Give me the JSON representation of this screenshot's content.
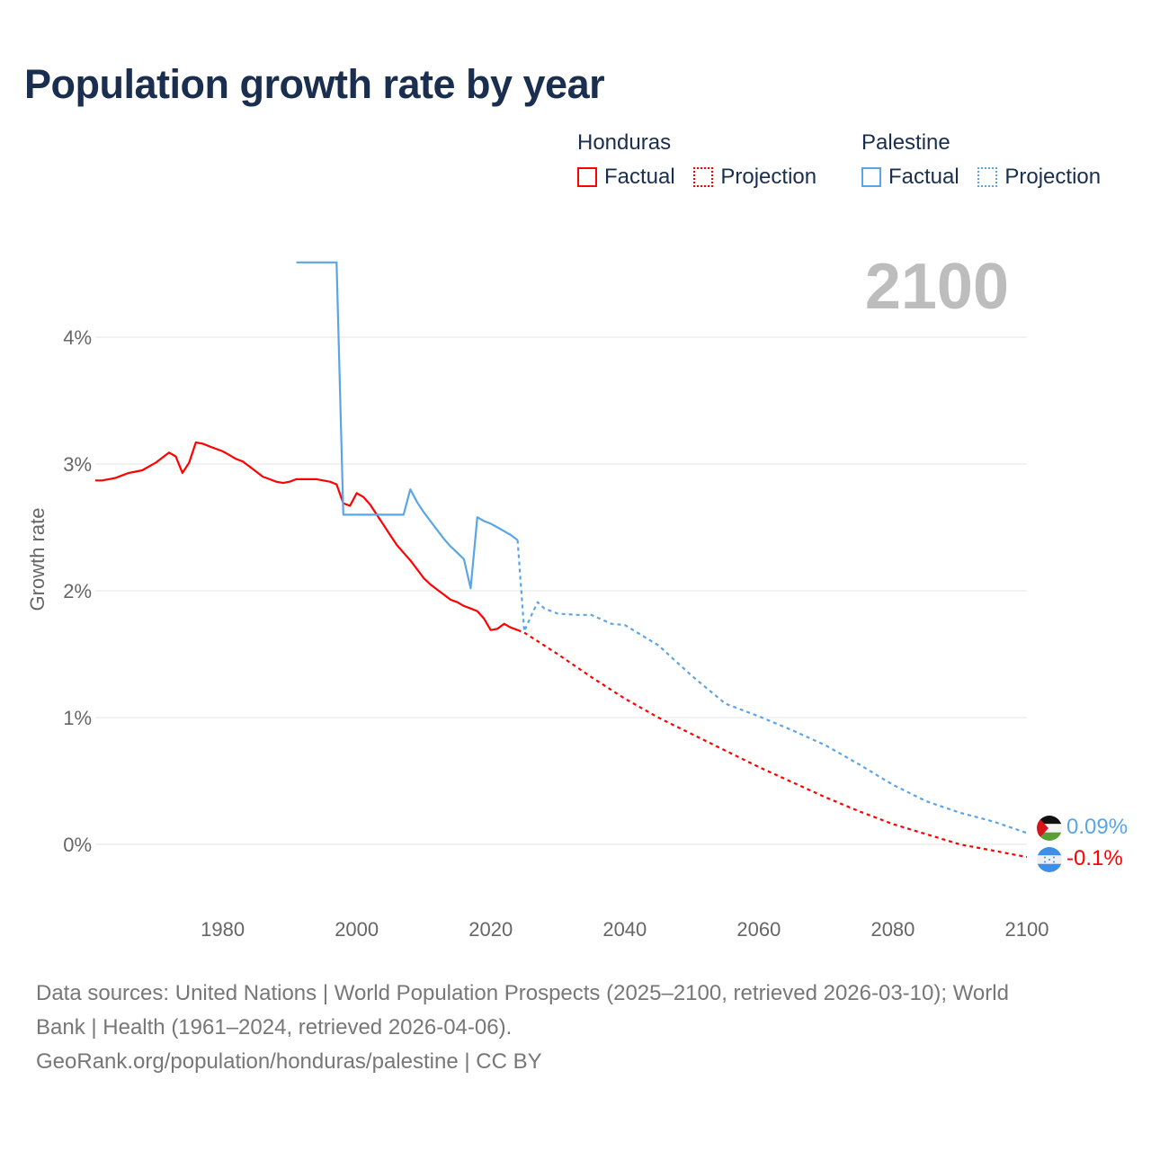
{
  "chart_data": {
    "type": "line",
    "title": "Population growth rate by year",
    "ylabel": "Growth rate",
    "xlabel": "",
    "xlim": [
      1961,
      2100
    ],
    "ylim": [
      -0.3,
      4.6
    ],
    "x_ticks": [
      "1980",
      "2000",
      "2020",
      "2040",
      "2060",
      "2080",
      "2100"
    ],
    "y_ticks": [
      "0%",
      "1%",
      "2%",
      "3%",
      "4%"
    ],
    "year_display": "2100",
    "legend": {
      "groups": [
        {
          "name": "Honduras",
          "items": [
            "Factual",
            "Projection"
          ]
        },
        {
          "name": "Palestine",
          "items": [
            "Factual",
            "Projection"
          ]
        }
      ],
      "placement": "top-right"
    },
    "series": [
      {
        "name": "Honduras Factual",
        "color": "#ff0000",
        "style": "solid",
        "x": [
          1961,
          1962,
          1963,
          1964,
          1965,
          1966,
          1967,
          1968,
          1969,
          1970,
          1971,
          1972,
          1973,
          1974,
          1975,
          1976,
          1977,
          1978,
          1979,
          1980,
          1981,
          1982,
          1983,
          1984,
          1985,
          1986,
          1987,
          1988,
          1989,
          1990,
          1991,
          1992,
          1993,
          1994,
          1995,
          1996,
          1997,
          1998,
          1999,
          2000,
          2001,
          2002,
          2003,
          2004,
          2005,
          2006,
          2007,
          2008,
          2009,
          2010,
          2011,
          2012,
          2013,
          2014,
          2015,
          2016,
          2017,
          2018,
          2019,
          2020,
          2021,
          2022,
          2023,
          2024
        ],
        "y": [
          2.87,
          2.87,
          2.88,
          2.89,
          2.91,
          2.93,
          2.94,
          2.95,
          2.98,
          3.01,
          3.05,
          3.09,
          3.06,
          2.93,
          3.01,
          3.17,
          3.16,
          3.14,
          3.12,
          3.1,
          3.07,
          3.04,
          3.02,
          2.98,
          2.94,
          2.9,
          2.88,
          2.86,
          2.85,
          2.86,
          2.88,
          2.88,
          2.88,
          2.88,
          2.87,
          2.86,
          2.84,
          2.69,
          2.67,
          2.77,
          2.74,
          2.68,
          2.6,
          2.52,
          2.44,
          2.36,
          2.3,
          2.24,
          2.17,
          2.1,
          2.05,
          2.01,
          1.97,
          1.93,
          1.91,
          1.88,
          1.86,
          1.84,
          1.78,
          1.69,
          1.7,
          1.74,
          1.71,
          1.69
        ]
      },
      {
        "name": "Honduras Projection",
        "color": "#ff0000",
        "style": "dotted",
        "x": [
          2024,
          2025,
          2030,
          2035,
          2040,
          2045,
          2050,
          2055,
          2060,
          2065,
          2070,
          2075,
          2080,
          2085,
          2090,
          2095,
          2100
        ],
        "y": [
          1.69,
          1.67,
          1.5,
          1.32,
          1.15,
          1.0,
          0.87,
          0.74,
          0.61,
          0.49,
          0.37,
          0.26,
          0.16,
          0.08,
          0.0,
          -0.05,
          -0.1
        ]
      },
      {
        "name": "Palestine Factual",
        "color": "#5aa5e8",
        "style": "solid",
        "x": [
          1991,
          1997,
          1998,
          2007,
          2008,
          2009,
          2010,
          2011,
          2012,
          2013,
          2014,
          2015,
          2016,
          2017,
          2018,
          2019,
          2020,
          2021,
          2022,
          2023,
          2024
        ],
        "y": [
          4.59,
          4.59,
          2.6,
          2.6,
          2.8,
          2.7,
          2.62,
          2.55,
          2.48,
          2.41,
          2.35,
          2.3,
          2.25,
          2.02,
          2.58,
          2.55,
          2.53,
          2.5,
          2.47,
          2.44,
          2.4
        ]
      },
      {
        "name": "Palestine Projection",
        "color": "#5aa5e8",
        "style": "dotted",
        "x": [
          2024,
          2025,
          2026,
          2027,
          2028,
          2030,
          2033,
          2035,
          2038,
          2040,
          2045,
          2050,
          2055,
          2060,
          2065,
          2070,
          2075,
          2080,
          2085,
          2090,
          2095,
          2100
        ],
        "y": [
          2.4,
          1.68,
          1.8,
          1.91,
          1.86,
          1.82,
          1.81,
          1.81,
          1.74,
          1.73,
          1.57,
          1.33,
          1.11,
          1.01,
          0.9,
          0.78,
          0.63,
          0.47,
          0.34,
          0.25,
          0.18,
          0.09
        ]
      }
    ],
    "end_labels": [
      {
        "series": "Palestine",
        "text": "0.09%",
        "color": "#5aa5e8"
      },
      {
        "series": "Honduras",
        "text": "-0.1%",
        "color": "#ff0000"
      }
    ]
  },
  "footer": {
    "line1": "Data sources: United Nations | World Population Prospects (2025–2100, retrieved 2026-03-10); World",
    "line2": "Bank | Health (1961–2024, retrieved 2026-04-06).",
    "line3": "GeoRank.org/population/honduras/palestine | CC BY"
  }
}
